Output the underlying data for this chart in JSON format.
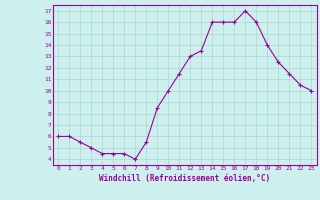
{
  "x": [
    0,
    1,
    2,
    3,
    4,
    5,
    6,
    7,
    8,
    9,
    10,
    11,
    12,
    13,
    14,
    15,
    16,
    17,
    18,
    19,
    20,
    21,
    22,
    23
  ],
  "y": [
    6.0,
    6.0,
    5.5,
    5.0,
    4.5,
    4.5,
    4.5,
    4.0,
    5.5,
    8.5,
    10.0,
    11.5,
    13.0,
    13.5,
    16.0,
    16.0,
    16.0,
    17.0,
    16.0,
    14.0,
    12.5,
    11.5,
    10.5,
    10.0
  ],
  "line_color": "#990099",
  "marker": "+",
  "marker_size": 3,
  "marker_linewidth": 0.8,
  "line_width": 0.8,
  "bg_color": "#cdf0ee",
  "grid_color": "#aad8cc",
  "xlabel": "Windchill (Refroidissement éolien,°C)",
  "xlabel_color": "#990099",
  "tick_color": "#990099",
  "spine_color": "#990099",
  "xlim": [
    -0.5,
    23.5
  ],
  "ylim": [
    3.5,
    17.5
  ],
  "yticks": [
    4,
    5,
    6,
    7,
    8,
    9,
    10,
    11,
    12,
    13,
    14,
    15,
    16,
    17
  ],
  "xticks": [
    0,
    1,
    2,
    3,
    4,
    5,
    6,
    7,
    8,
    9,
    10,
    11,
    12,
    13,
    14,
    15,
    16,
    17,
    18,
    19,
    20,
    21,
    22,
    23
  ],
  "xtick_labels": [
    "0",
    "1",
    "2",
    "3",
    "4",
    "5",
    "6",
    "7",
    "8",
    "9",
    "10",
    "11",
    "12",
    "13",
    "14",
    "15",
    "16",
    "17",
    "18",
    "19",
    "20",
    "21",
    "22",
    "23"
  ],
  "tick_fontsize": 4.5,
  "xlabel_fontsize": 5.5
}
